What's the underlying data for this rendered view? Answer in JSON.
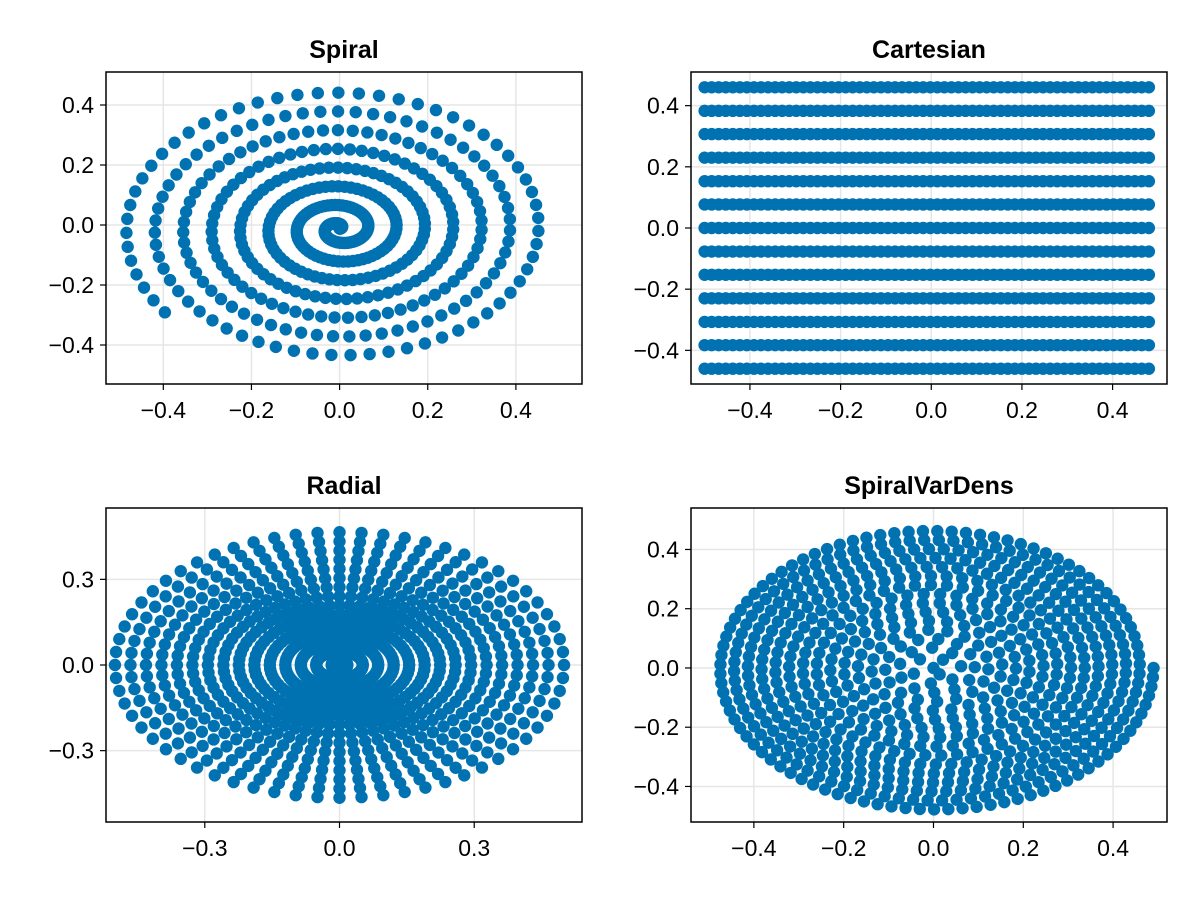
{
  "colors": {
    "point": "#0072b2",
    "grid": "#e6e6e6",
    "frame": "#000000"
  },
  "chart_data": [
    {
      "type": "scatter",
      "title": "Spiral",
      "generator": "archimedean_spiral",
      "params": {
        "turns": 7.6,
        "points": 480,
        "r_max": 0.5,
        "x_scale": 0.98,
        "y_scale": 0.95,
        "y_shift": -0.012
      },
      "xlim": [
        -0.53,
        0.55
      ],
      "ylim": [
        -0.53,
        0.51
      ],
      "xticks": [
        -0.4,
        -0.2,
        0.0,
        0.2,
        0.4
      ],
      "yticks": [
        -0.4,
        -0.2,
        0.0,
        0.2,
        0.4
      ],
      "xtick_labels": [
        "−0.4",
        "−0.2",
        "0.0",
        "0.2",
        "0.4"
      ],
      "ytick_labels": [
        "−0.4",
        "−0.2",
        "0.0",
        "0.2",
        "0.4"
      ],
      "xlabel": "",
      "ylabel": "",
      "grid": true
    },
    {
      "type": "scatter",
      "title": "Cartesian",
      "generator": "cartesian_grid",
      "params": {
        "x_min": -0.5,
        "x_max": 0.48,
        "cols": 64,
        "rows": [
          -0.46,
          -0.383,
          -0.307,
          -0.23,
          -0.153,
          -0.077,
          0.0,
          0.077,
          0.153,
          0.23,
          0.307,
          0.383,
          0.46
        ]
      },
      "xlim": [
        -0.53,
        0.52
      ],
      "ylim": [
        -0.51,
        0.51
      ],
      "xticks": [
        -0.4,
        -0.2,
        0.0,
        0.2,
        0.4
      ],
      "yticks": [
        -0.4,
        -0.2,
        0.0,
        0.2,
        0.4
      ],
      "xtick_labels": [
        "−0.4",
        "−0.2",
        "0.0",
        "0.2",
        "0.4"
      ],
      "ytick_labels": [
        "−0.4",
        "−0.2",
        "0.0",
        "0.2",
        "0.4"
      ],
      "xlabel": "",
      "ylabel": "",
      "grid": true
    },
    {
      "type": "scatter",
      "title": "Radial",
      "generator": "radial_spokes",
      "params": {
        "spokes": 32,
        "points_per_spoke": 30,
        "r_max": 0.5,
        "angle_offset_deg": 0,
        "y_scale": 0.93
      },
      "xlim": [
        -0.52,
        0.54
      ],
      "ylim": [
        -0.55,
        0.55
      ],
      "xticks": [
        -0.3,
        0.0,
        0.3
      ],
      "yticks": [
        -0.3,
        0.0,
        0.3
      ],
      "xtick_labels": [
        "−0.3",
        "0.0",
        "0.3"
      ],
      "ytick_labels": [
        "−0.3",
        "0.0",
        "0.3"
      ],
      "xlabel": "",
      "ylabel": "",
      "grid": true
    },
    {
      "type": "scatter",
      "title": "SpiralVarDens",
      "generator": "archimedean_spiral",
      "params": {
        "turns": 16,
        "points": 700,
        "r_max": 0.5,
        "x_scale": 0.98,
        "y_scale": 0.97,
        "y_shift": 0.0,
        "density_power": 0.45
      },
      "xlim": [
        -0.54,
        0.52
      ],
      "ylim": [
        -0.52,
        0.54
      ],
      "xticks": [
        -0.4,
        -0.2,
        0.0,
        0.2,
        0.4
      ],
      "yticks": [
        -0.4,
        -0.2,
        0.0,
        0.2,
        0.4
      ],
      "xtick_labels": [
        "−0.4",
        "−0.2",
        "0.0",
        "0.2",
        "0.4"
      ],
      "ytick_labels": [
        "−0.4",
        "−0.2",
        "0.0",
        "0.2",
        "0.4"
      ],
      "xlabel": "",
      "ylabel": "",
      "grid": true
    }
  ]
}
